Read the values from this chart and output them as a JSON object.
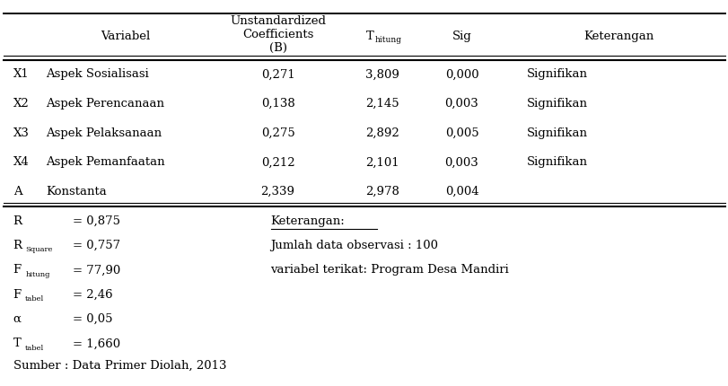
{
  "rows": [
    [
      "X1",
      "Aspek Sosialisasi",
      "0,271",
      "3,809",
      "0,000",
      "Signifikan"
    ],
    [
      "X2",
      "Aspek Perencanaan",
      "0,138",
      "2,145",
      "0,003",
      "Signifikan"
    ],
    [
      "X3",
      "Aspek Pelaksanaan",
      "0,275",
      "2,892",
      "0,005",
      "Signifikan"
    ],
    [
      "X4",
      "Aspek Pemanfaatan",
      "0,212",
      "2,101",
      "0,003",
      "Signifikan"
    ],
    [
      "A",
      "Konstanta",
      "2,339",
      "2,978",
      "0,004",
      ""
    ]
  ],
  "footer_left_labels": [
    [
      "R",
      "",
      "= 0,875"
    ],
    [
      "R",
      "Square",
      "= 0,757"
    ],
    [
      "F",
      "hitung",
      "= 77,90"
    ],
    [
      "F",
      "tabel",
      "= 2,46"
    ],
    [
      "α",
      "",
      "= 0,05"
    ],
    [
      "T",
      "tabel",
      "= 1,660"
    ]
  ],
  "footer_right_title": "Keterangan:",
  "footer_right_lines": [
    "Jumlah data observasi : 100",
    "variabel terikat: Program Desa Mandiri"
  ],
  "source": "Sumber : Data Primer Diolah, 2013",
  "bg_color": "#ffffff",
  "text_color": "#000000",
  "fontsize": 9.5
}
